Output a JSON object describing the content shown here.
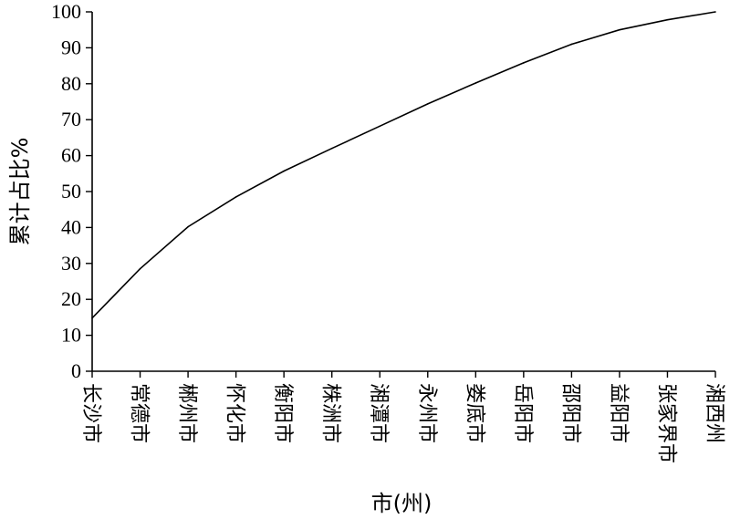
{
  "chart_data": {
    "type": "line",
    "title": "",
    "xlabel": "市(州)",
    "ylabel": "累计占比%",
    "ylim": [
      0,
      100
    ],
    "yticks": [
      0,
      10,
      20,
      30,
      40,
      50,
      60,
      70,
      80,
      90,
      100
    ],
    "grid": false,
    "legend": "none",
    "categories": [
      "长沙市",
      "常德市",
      "郴州市",
      "怀化市",
      "衡阳市",
      "株洲市",
      "湘潭市",
      "永州市",
      "娄底市",
      "岳阳市",
      "邵阳市",
      "益阳市",
      "张家界市",
      "湘西州"
    ],
    "series": [
      {
        "values": [
          14.8,
          28.5,
          40.2,
          48.5,
          55.7,
          62.0,
          68.2,
          74.4,
          80.2,
          85.8,
          91.0,
          95.0,
          97.8,
          100
        ]
      }
    ]
  }
}
